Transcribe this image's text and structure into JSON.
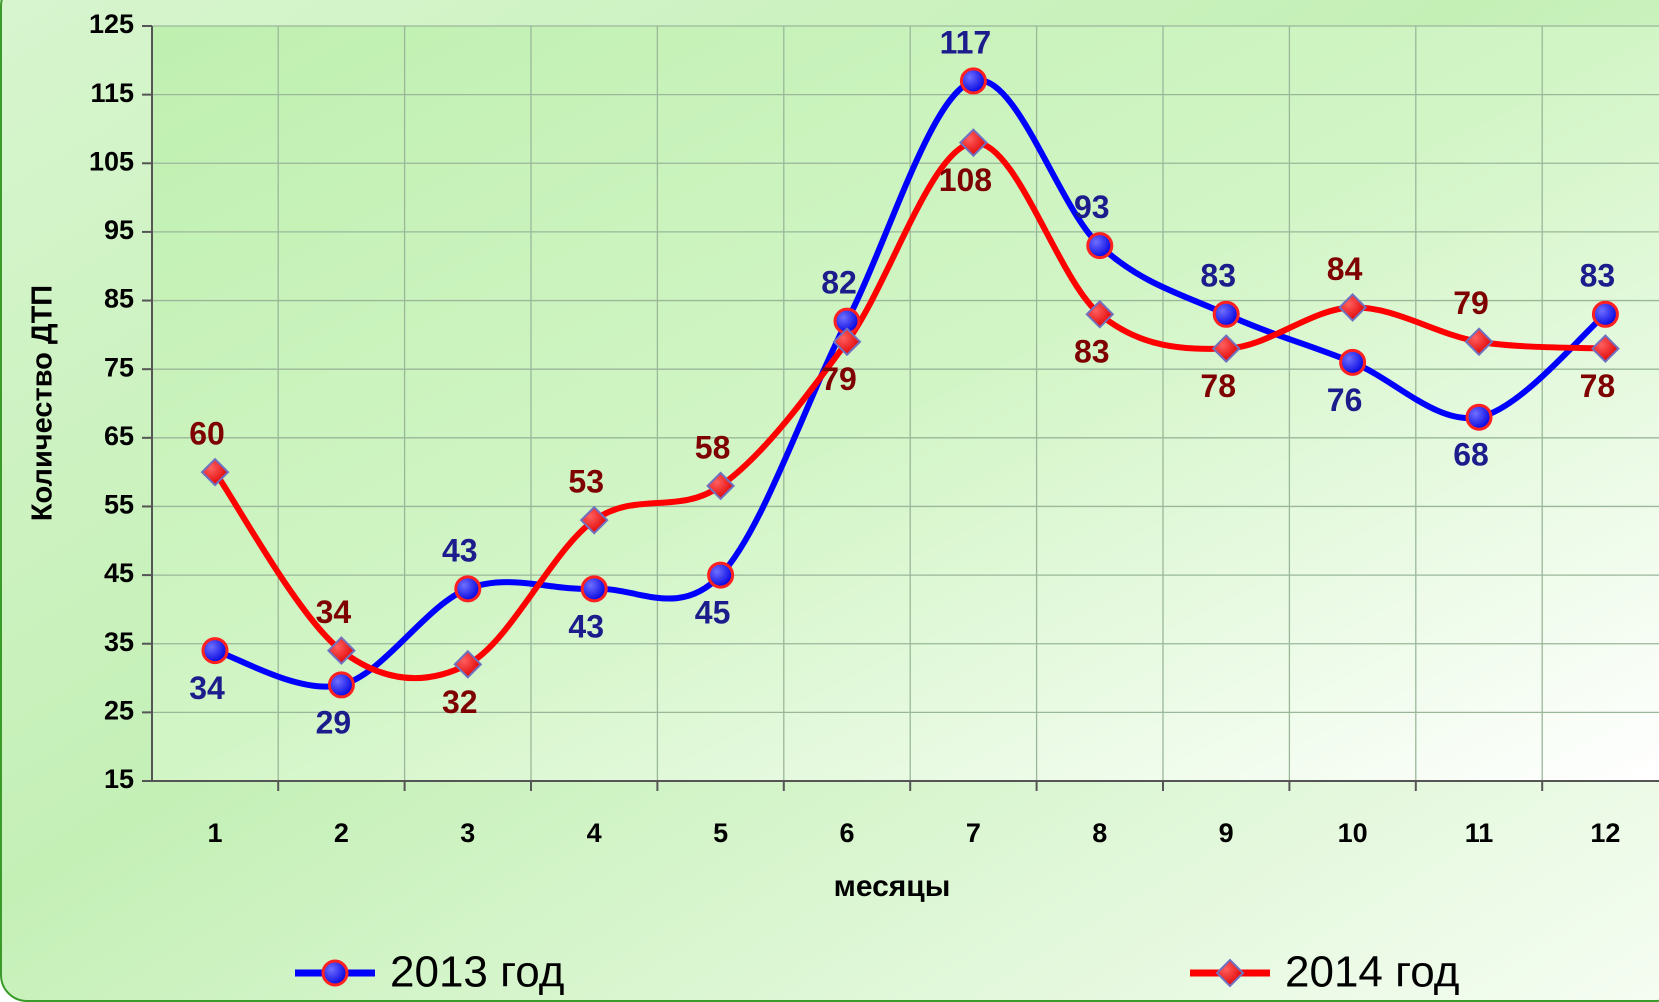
{
  "chart_data": {
    "type": "line",
    "categories": [
      "1",
      "2",
      "3",
      "4",
      "5",
      "6",
      "7",
      "8",
      "9",
      "10",
      "11",
      "12"
    ],
    "series": [
      {
        "name": "2013 год",
        "color": "#0000ff",
        "label_color": "#1c1c8c",
        "marker": "circle",
        "values": [
          34,
          29,
          43,
          43,
          45,
          82,
          117,
          93,
          83,
          76,
          68,
          83
        ]
      },
      {
        "name": "2014 год",
        "color": "#ff0000",
        "label_color": "#7f0000",
        "marker": "diamond",
        "values": [
          60,
          34,
          32,
          53,
          58,
          79,
          108,
          83,
          78,
          84,
          79,
          78
        ]
      }
    ],
    "xlabel": "месяцы",
    "ylabel": "Количество ДТП",
    "ylim": [
      15,
      125
    ],
    "yticks": [
      15,
      25,
      35,
      45,
      55,
      65,
      75,
      85,
      95,
      105,
      115,
      125
    ],
    "grid": true,
    "smooth": true,
    "legend": "bottom"
  }
}
